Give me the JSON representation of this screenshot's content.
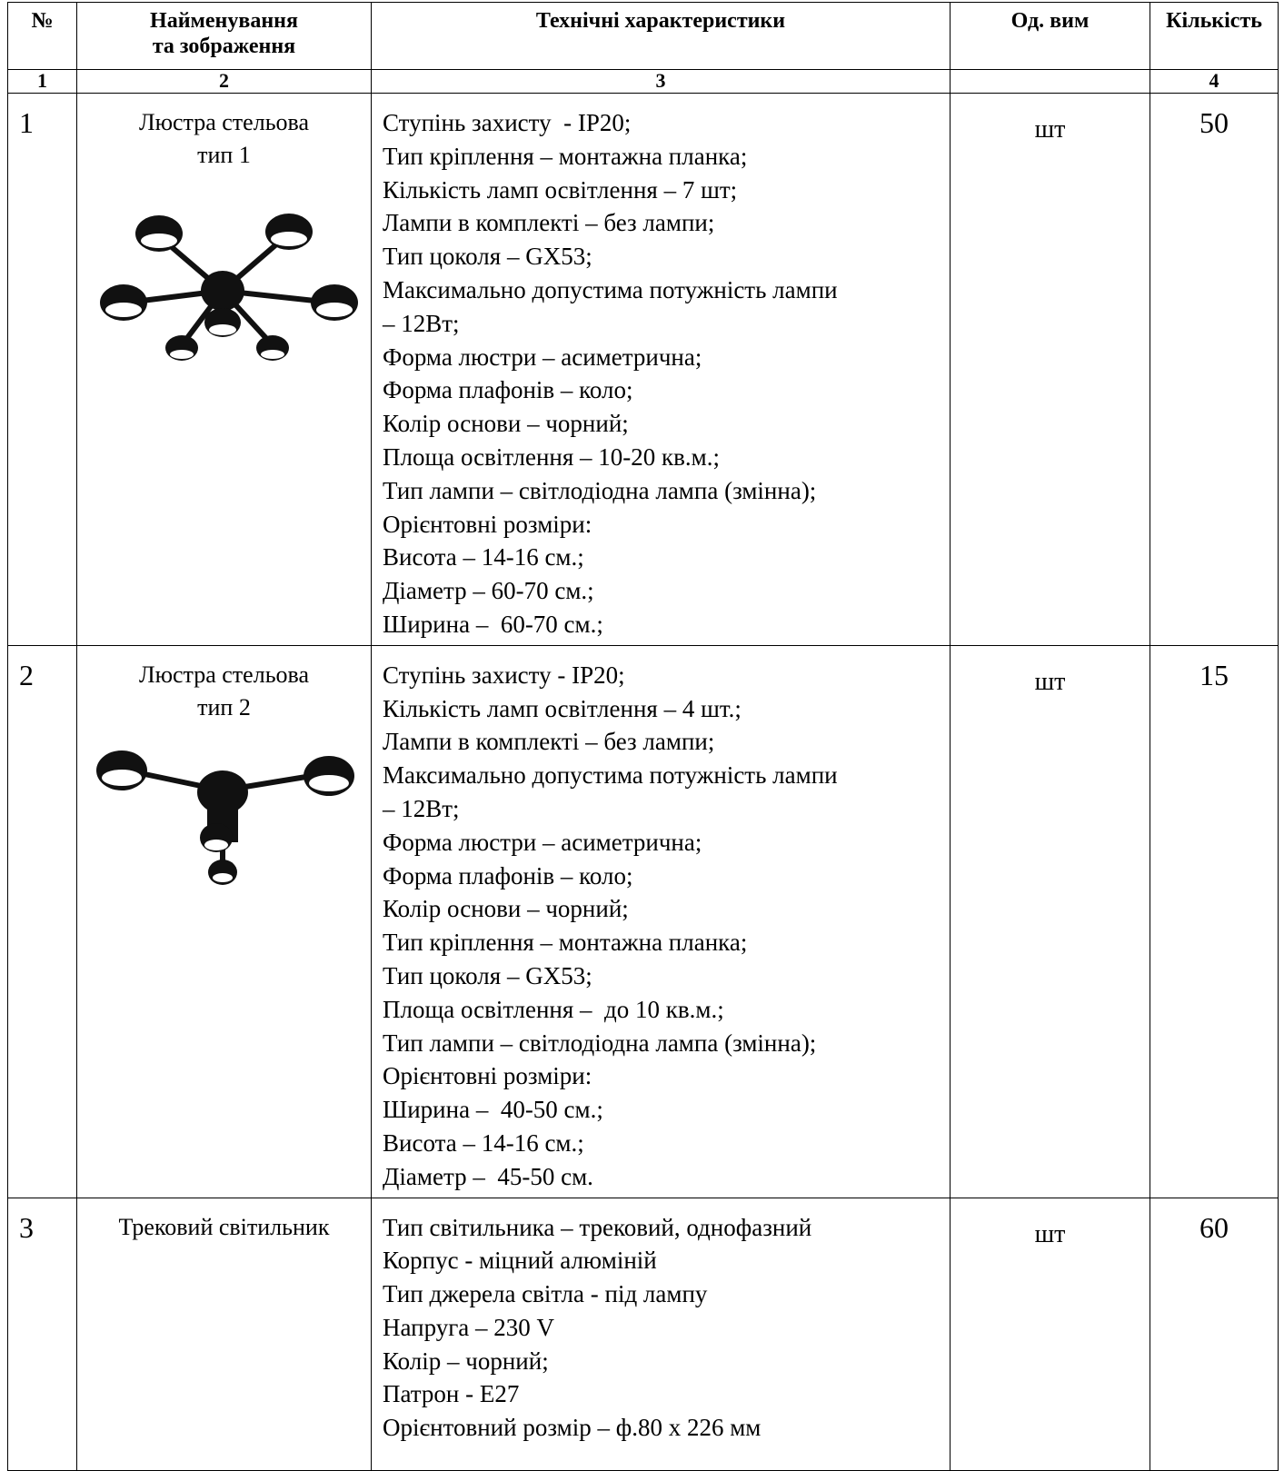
{
  "header": {
    "number": "№",
    "name": [
      "Найменування",
      "та зображення"
    ],
    "specs": "Технічні характеристики",
    "unit": "Од. вим",
    "quantity": "Кількість"
  },
  "column_numbers": [
    "1",
    "2",
    "3",
    "4"
  ],
  "rows": [
    {
      "number": 1,
      "name": [
        "Люстра стельова",
        "тип 1"
      ],
      "unit": "шт",
      "quantity": 50,
      "specs": [
        "Ступінь захисту  - IP20;",
        "Тип кріплення – монтажна планка;",
        "Кількість ламп освітлення – 7 шт;",
        "Лампи в комплекті – без лампи;",
        "Тип цоколя – GX53;",
        "Максимально допустима потужність лампи",
        "– 12Вт;",
        "Форма люстри – асиметрична;",
        "Форма плафонів – коло;",
        "Колір основи – чорний;",
        "Площа освітлення – 10-20 кв.м.;",
        "Тип лампи – світлодіодна лампа (змінна);",
        "Орієнтовні розміри:",
        "Висота – 14-16 см.;",
        "Діаметр – 60-70 см.;",
        "Ширина –  60-70 см.;"
      ]
    },
    {
      "number": 2,
      "name": [
        "Люстра стельова",
        "тип 2"
      ],
      "unit": "шт",
      "quantity": 15,
      "specs": [
        "Ступінь захисту - IP20;",
        "Кількість ламп освітлення – 4 шт.;",
        "Лампи в комплекті – без лампи;",
        "Максимально допустима потужність лампи",
        "– 12Вт;",
        "Форма люстри – асиметрична;",
        "Форма плафонів – коло;",
        "Колір основи – чорний;",
        "Тип кріплення – монтажна планка;",
        "Тип цоколя – GX53;",
        "Площа освітлення –  до 10 кв.м.;",
        "Тип лампи – світлодіодна лампа (змінна);",
        "Орієнтовні розміри:",
        "Ширина –  40-50 см.;",
        "Висота – 14-16 см.;",
        "Діаметр –  45-50 см."
      ]
    },
    {
      "number": 3,
      "name": [
        "Трековий світильник"
      ],
      "unit": "шт",
      "quantity": 60,
      "specs": [
        "Тип світильника – трековий, однофазний",
        "Корпус - міцний алюміній",
        "Тип джерела світла - під лампу",
        "Напруга – 230 V",
        "Колір – чорний;",
        "Патрон - Е27",
        "Орієнтовний розмір – ф.80 х 226 мм"
      ]
    }
  ]
}
